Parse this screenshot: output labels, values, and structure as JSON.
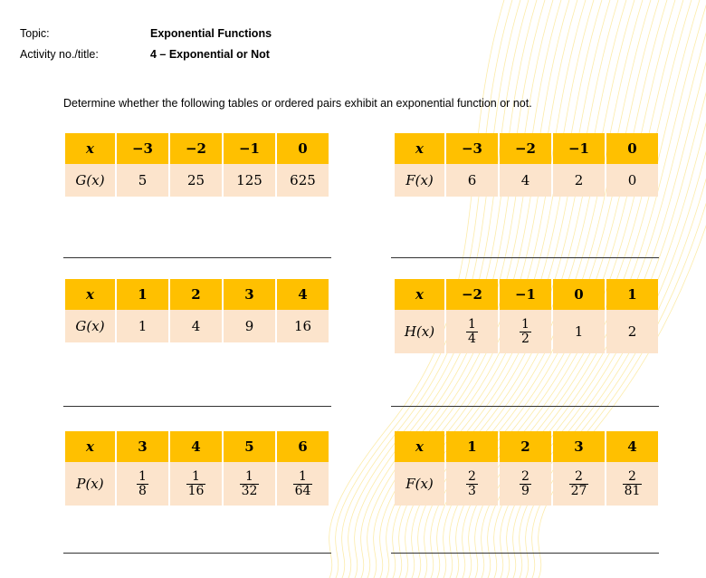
{
  "header": {
    "topic_label": "Topic:",
    "topic_value": "Exponential Functions",
    "activity_label": "Activity no./title:",
    "activity_value": "4 – Exponential or Not"
  },
  "instructions": "Determine whether the following tables or ordered pairs exhibit an exponential function or not.",
  "colors": {
    "header_fill": "#FFC000",
    "value_fill": "#FCE4CC"
  },
  "tables": [
    {
      "x_label": "x",
      "f_label": "G(x)",
      "x": [
        "−3",
        "−2",
        "−1",
        "0"
      ],
      "y": [
        "5",
        "25",
        "125",
        "625"
      ]
    },
    {
      "x_label": "x",
      "f_label": "F(x)",
      "x": [
        "−3",
        "−2",
        "−1",
        "0"
      ],
      "y": [
        "6",
        "4",
        "2",
        "0"
      ]
    },
    {
      "x_label": "x",
      "f_label": "G(x)",
      "x": [
        "1",
        "2",
        "3",
        "4"
      ],
      "y": [
        "1",
        "4",
        "9",
        "16"
      ]
    },
    {
      "x_label": "x",
      "f_label": "H(x)",
      "x": [
        "−2",
        "−1",
        "0",
        "1"
      ],
      "y": [
        {
          "num": "1",
          "den": "4"
        },
        {
          "num": "1",
          "den": "2"
        },
        "1",
        "2"
      ]
    },
    {
      "x_label": "x",
      "f_label": "P(x)",
      "x": [
        "3",
        "4",
        "5",
        "6"
      ],
      "y": [
        {
          "num": "1",
          "den": "8"
        },
        {
          "num": "1",
          "den": "16"
        },
        {
          "num": "1",
          "den": "32"
        },
        {
          "num": "1",
          "den": "64"
        }
      ]
    },
    {
      "x_label": "x",
      "f_label": "F(x)",
      "x": [
        "1",
        "2",
        "3",
        "4"
      ],
      "y": [
        {
          "num": "2",
          "den": "3"
        },
        {
          "num": "2",
          "den": "9"
        },
        {
          "num": "2",
          "den": "27"
        },
        {
          "num": "2",
          "den": "81"
        }
      ]
    }
  ]
}
